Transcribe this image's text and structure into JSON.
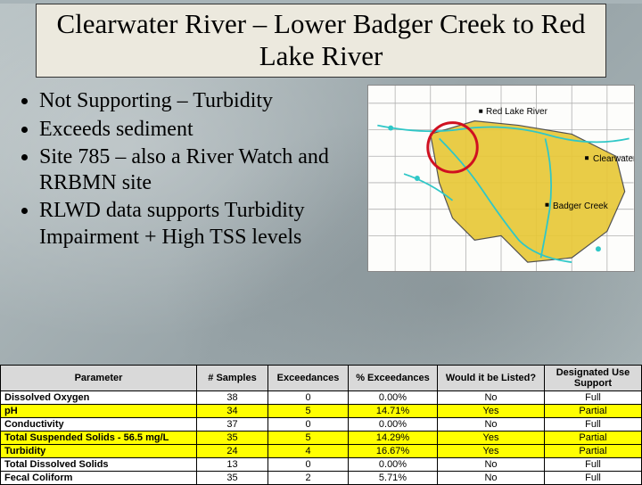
{
  "title": "Clearwater River – Lower Badger Creek to Red Lake River",
  "bullets": [
    "Not Supporting – Turbidity",
    "Exceeds sediment",
    "Site 785 – also a River Watch and RRBMN site",
    "RLWD data supports Turbidity Impairment + High TSS levels"
  ],
  "map": {
    "labels": {
      "red_lake_river": "Red Lake River",
      "clearwater": "Clearwater",
      "badger_creek": "Badger Creek"
    },
    "colors": {
      "background": "#fdfdfb",
      "watershed_fill": "#e8c838",
      "river_stroke": "#2fc7c7",
      "road_stroke": "#b0b0b0",
      "highlight_circle": "#d01020",
      "outline": "#444444"
    }
  },
  "table": {
    "columns": [
      "Parameter",
      "# Samples",
      "Exceedances",
      "% Exceedances",
      "Would it be Listed?",
      "Designated Use Support"
    ],
    "rows": [
      {
        "param": "Dissolved Oxygen",
        "samples": "38",
        "exc": "0",
        "pct": "0.00%",
        "listed": "No",
        "support": "Full",
        "highlight": false
      },
      {
        "param": "pH",
        "samples": "34",
        "exc": "5",
        "pct": "14.71%",
        "listed": "Yes",
        "support": "Partial",
        "highlight": true
      },
      {
        "param": "Conductivity",
        "samples": "37",
        "exc": "0",
        "pct": "0.00%",
        "listed": "No",
        "support": "Full",
        "highlight": false
      },
      {
        "param": "Total Suspended Solids - 56.5 mg/L",
        "samples": "35",
        "exc": "5",
        "pct": "14.29%",
        "listed": "Yes",
        "support": "Partial",
        "highlight": true
      },
      {
        "param": "Turbidity",
        "samples": "24",
        "exc": "4",
        "pct": "16.67%",
        "listed": "Yes",
        "support": "Partial",
        "highlight": true
      },
      {
        "param": "Total Dissolved Solids",
        "samples": "13",
        "exc": "0",
        "pct": "0.00%",
        "listed": "No",
        "support": "Full",
        "highlight": false
      },
      {
        "param": "Fecal Coliform",
        "samples": "35",
        "exc": "2",
        "pct": "5.71%",
        "listed": "No",
        "support": "Full",
        "highlight": false
      }
    ],
    "highlight_color": "#ffff00",
    "header_bg": "#d9d9d9"
  }
}
